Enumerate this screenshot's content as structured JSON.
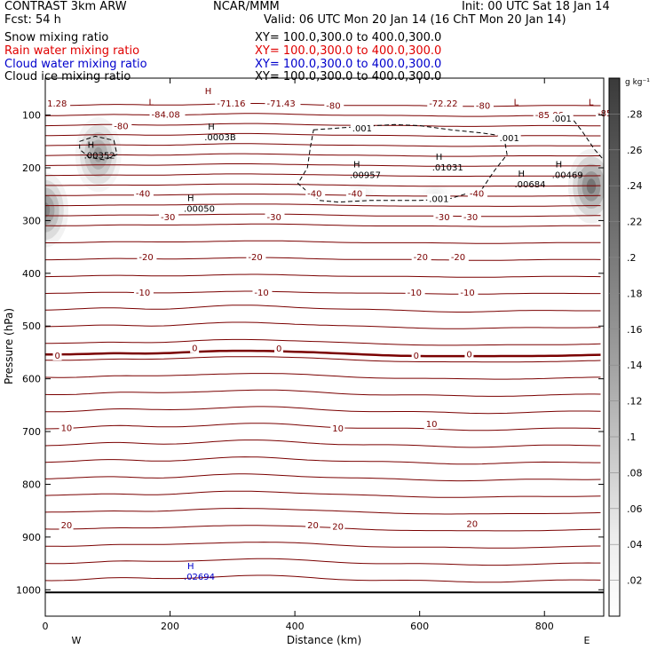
{
  "header": {
    "model": "CONTRAST  3km ARW",
    "center": "NCAR/MMM",
    "init": "Init: 00 UTC Sat 18 Jan 14",
    "fcst": "Fcst:   54 h",
    "valid": "Valid: 06 UTC Mon 20 Jan 14 (16 ChT Mon 20 Jan 14)",
    "fields": [
      {
        "name": "Snow mixing ratio",
        "xy": "XY= 100.0,300.0 to 400.0,300.0",
        "color": "#000000"
      },
      {
        "name": "Rain water mixing ratio",
        "xy": "XY= 100.0,300.0 to 400.0,300.0",
        "color": "#e00000"
      },
      {
        "name": "Cloud water mixing ratio",
        "xy": "XY= 100.0,300.0 to 400.0,300.0",
        "color": "#0000cc"
      },
      {
        "name": "Cloud ice mixing ratio",
        "xy": "XY= 100.0,300.0 to 400.0,300.0",
        "color": "#000000"
      }
    ]
  },
  "chart_data": {
    "type": "contour",
    "xlabel": "Distance (km)",
    "ylabel": "Pressure (hPa)",
    "xlim": [
      0,
      895
    ],
    "ylim": [
      1050,
      30
    ],
    "x_ticks": [
      0,
      200,
      400,
      600,
      800
    ],
    "y_ticks": [
      100,
      200,
      300,
      400,
      500,
      600,
      700,
      800,
      900,
      1000
    ],
    "x_end_labels": {
      "left": "W",
      "right": "E"
    },
    "colorbar": {
      "unit": "g kg⁻¹",
      "ticks": [
        ".02",
        ".04",
        ".06",
        ".08",
        ".1",
        ".12",
        ".14",
        ".16",
        ".18",
        ".2",
        ".22",
        ".24",
        ".26",
        ".28"
      ],
      "levels": [
        0,
        0.02,
        0.04,
        0.06,
        0.08,
        0.1,
        0.12,
        0.14,
        0.16,
        0.18,
        0.2,
        0.22,
        0.24,
        0.26,
        0.28,
        0.3
      ]
    },
    "temperature_isotherms": [
      {
        "label": "-80",
        "p": 125
      },
      {
        "label": "-40",
        "p": 255
      },
      {
        "label": "-30",
        "p": 298
      },
      {
        "label": "-20",
        "p": 372
      },
      {
        "label": "-10",
        "p": 440
      },
      {
        "label": "0",
        "p": 555
      },
      {
        "label": "10",
        "p": 692
      },
      {
        "label": "20",
        "p": 880
      }
    ],
    "contour_labels": [
      {
        "text": "-80",
        "x": 110,
        "p": 125
      },
      {
        "text": "-80",
        "x": 450,
        "p": 86
      },
      {
        "text": "-80",
        "x": 690,
        "p": 86
      },
      {
        "text": "-40",
        "x": 145,
        "p": 253
      },
      {
        "text": "-40",
        "x": 420,
        "p": 253
      },
      {
        "text": "-40",
        "x": 485,
        "p": 253
      },
      {
        "text": "-40",
        "x": 680,
        "p": 253
      },
      {
        "text": "-30",
        "x": 185,
        "p": 298
      },
      {
        "text": "-30",
        "x": 355,
        "p": 298
      },
      {
        "text": "-30",
        "x": 625,
        "p": 298
      },
      {
        "text": "-30",
        "x": 670,
        "p": 298
      },
      {
        "text": "-20",
        "x": 150,
        "p": 373
      },
      {
        "text": "-20",
        "x": 325,
        "p": 373
      },
      {
        "text": "-20",
        "x": 590,
        "p": 373
      },
      {
        "text": "-20",
        "x": 650,
        "p": 373
      },
      {
        "text": "-10",
        "x": 145,
        "p": 441
      },
      {
        "text": "-10",
        "x": 335,
        "p": 441
      },
      {
        "text": "-10",
        "x": 580,
        "p": 441
      },
      {
        "text": "-10",
        "x": 665,
        "p": 441
      },
      {
        "text": "0",
        "x": 15,
        "p": 560
      },
      {
        "text": "0",
        "x": 235,
        "p": 546
      },
      {
        "text": "0",
        "x": 370,
        "p": 547
      },
      {
        "text": "0",
        "x": 590,
        "p": 560
      },
      {
        "text": "0",
        "x": 675,
        "p": 558
      },
      {
        "text": "10",
        "x": 25,
        "p": 697
      },
      {
        "text": "10",
        "x": 460,
        "p": 698
      },
      {
        "text": "10",
        "x": 610,
        "p": 690
      },
      {
        "text": "20",
        "x": 25,
        "p": 882
      },
      {
        "text": "20",
        "x": 420,
        "p": 882
      },
      {
        "text": "20",
        "x": 460,
        "p": 884
      },
      {
        "text": "20",
        "x": 675,
        "p": 879
      },
      {
        "text": "1.28",
        "x": 3,
        "p": 82
      },
      {
        "text": "-71.16",
        "x": 275,
        "p": 82
      },
      {
        "text": "-71.43",
        "x": 355,
        "p": 82
      },
      {
        "text": "-72.22",
        "x": 615,
        "p": 82
      },
      {
        "text": "-84.08",
        "x": 170,
        "p": 103
      },
      {
        "text": "-85.06",
        "x": 785,
        "p": 104
      },
      {
        "text": "-85",
        "x": 885,
        "p": 101
      }
    ],
    "extrema": [
      {
        "kind": "H",
        "value": ".00352",
        "x": 62,
        "p": 167,
        "color": "#000000"
      },
      {
        "kind": "H",
        "value": ".0003B",
        "x": 255,
        "p": 133,
        "color": "#000000"
      },
      {
        "kind": "H",
        "value": ".00050",
        "x": 222,
        "p": 268,
        "color": "#000000"
      },
      {
        "kind": "H",
        "value": ".00957",
        "x": 488,
        "p": 204,
        "color": "#000000"
      },
      {
        "kind": "H",
        "value": ".01031",
        "x": 620,
        "p": 190,
        "color": "#000000"
      },
      {
        "kind": "H",
        "value": ".00684",
        "x": 752,
        "p": 222,
        "color": "#000000"
      },
      {
        "kind": "H",
        "value": ".00469",
        "x": 812,
        "p": 204,
        "color": "#000000"
      },
      {
        "kind": "H",
        "value": ".02694",
        "x": 222,
        "p": 966,
        "color": "#0000cc"
      },
      {
        "kind": "L",
        "value": "",
        "x": 160,
        "p": 86,
        "color": "#7a0000"
      },
      {
        "kind": "L",
        "value": "",
        "x": 745,
        "p": 86,
        "color": "#7a0000"
      },
      {
        "kind": "L",
        "value": "",
        "x": 865,
        "p": 86,
        "color": "#7a0000"
      },
      {
        "kind": "H",
        "value": "",
        "x": 250,
        "p": 65,
        "color": "#7a0000"
      }
    ],
    "ice_contour_labels": [
      {
        "text": ".001",
        "x": 492,
        "p": 129
      },
      {
        "text": ".001",
        "x": 728,
        "p": 148
      },
      {
        "text": ".001",
        "x": 812,
        "p": 111
      },
      {
        "text": ".001",
        "x": 615,
        "p": 263
      }
    ],
    "snow_maxima": [
      {
        "x": 85,
        "p": 175,
        "level": 0.22
      },
      {
        "x": 0,
        "p": 280,
        "level": 0.26
      },
      {
        "x": 875,
        "p": 235,
        "level": 0.3
      },
      {
        "x": 505,
        "p": 250,
        "level": 0.04
      },
      {
        "x": 625,
        "p": 250,
        "level": 0.04
      }
    ]
  }
}
